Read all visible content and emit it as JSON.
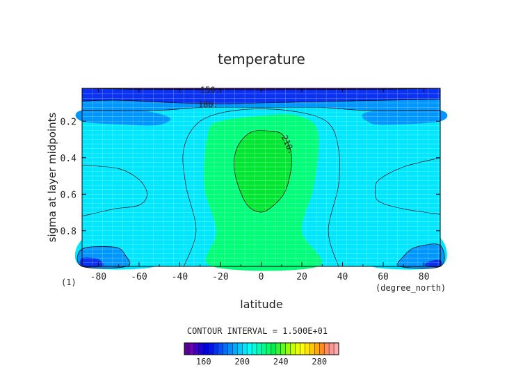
{
  "chart_data": {
    "type": "heatmap",
    "title": "temperature",
    "xlabel": "latitude",
    "ylabel": "sigma at layer midpoints",
    "x_units": "(degree_north)",
    "panel_marker": "(1)",
    "xlim": [
      -88,
      88
    ],
    "ylim": [
      0.02,
      0.995
    ],
    "y_inverted": true,
    "grid": true,
    "x_ticks": [
      -80,
      -60,
      -40,
      -20,
      0,
      20,
      40,
      60,
      80
    ],
    "y_ticks": [
      0.2,
      0.4,
      0.6,
      0.8
    ],
    "contour_interval_text": "CONTOUR INTERVAL = 1.500E+01",
    "contour_labels": [
      {
        "text": "150.",
        "lat": -25,
        "sigma": 0.03
      },
      {
        "text": "180.",
        "lat": -26,
        "sigma": 0.11
      },
      {
        "text": "210.",
        "lat": 12,
        "sigma": 0.32,
        "rotate": 65
      }
    ],
    "levels": [
      140,
      145,
      150,
      155,
      160,
      165,
      170,
      175,
      180,
      185,
      190,
      195,
      200,
      205,
      210,
      215,
      220,
      225,
      230,
      235,
      240,
      245,
      250,
      255,
      260,
      265,
      270,
      275,
      280,
      285,
      290,
      295,
      300
    ],
    "colorbar_ticks": [
      160,
      200,
      240,
      280
    ],
    "colorbar_colors": [
      "#5a0096",
      "#6a00b4",
      "#3c00c8",
      "#1e00d2",
      "#0000e6",
      "#0014f0",
      "#0032f5",
      "#0050fa",
      "#006eff",
      "#008cff",
      "#00aaff",
      "#00c8ff",
      "#00e6ff",
      "#00ffff",
      "#00ffdc",
      "#00ffb4",
      "#00ff8c",
      "#00ff64",
      "#00f050",
      "#32f532",
      "#64fa1e",
      "#96ff00",
      "#c8ff00",
      "#e6ff00",
      "#ffff00",
      "#ffe600",
      "#ffc800",
      "#ffaa00",
      "#ff8c1e",
      "#ff8c64",
      "#ff9696",
      "#ffaaaa"
    ],
    "fill_colors": {
      "t150": "#3c0096",
      "t165": "#2800dc",
      "t180": "#0a32f0",
      "t195": "#0096ff",
      "t210": "#00e6ff",
      "t225": "#00ff78",
      "t240": "#00e632"
    },
    "contours": [
      {
        "level": 165,
        "points": [
          [
            -88,
            0.02
          ],
          [
            -60,
            0.025
          ],
          [
            -20,
            0.027
          ],
          [
            0,
            0.028
          ],
          [
            20,
            0.027
          ],
          [
            60,
            0.025
          ],
          [
            88,
            0.02
          ]
        ]
      },
      {
        "level": 180,
        "points": [
          [
            -88,
            0.09
          ],
          [
            -70,
            0.085
          ],
          [
            -40,
            0.1
          ],
          [
            -20,
            0.105
          ],
          [
            0,
            0.1
          ],
          [
            20,
            0.095
          ],
          [
            40,
            0.09
          ],
          [
            60,
            0.085
          ],
          [
            88,
            0.08
          ]
        ]
      },
      {
        "level": 195,
        "points": [
          [
            -88,
            0.14
          ],
          [
            -50,
            0.14
          ],
          [
            -30,
            0.125
          ],
          [
            0,
            0.125
          ],
          [
            30,
            0.125
          ],
          [
            50,
            0.14
          ],
          [
            88,
            0.14
          ]
        ]
      }
    ],
    "regions": [
      {
        "name": "warm-core-225",
        "level": 225,
        "points": [
          [
            -20,
            0.2
          ],
          [
            0,
            0.17
          ],
          [
            18,
            0.17
          ],
          [
            28,
            0.26
          ],
          [
            26,
            0.55
          ],
          [
            20,
            0.8
          ],
          [
            28,
            0.995
          ],
          [
            -24,
            0.995
          ],
          [
            -22,
            0.8
          ],
          [
            -28,
            0.55
          ],
          [
            -26,
            0.26
          ]
        ]
      },
      {
        "name": "core-240",
        "level": 240,
        "points": [
          [
            -12,
            0.35
          ],
          [
            -5,
            0.26
          ],
          [
            5,
            0.255
          ],
          [
            11,
            0.28
          ],
          [
            15,
            0.4
          ],
          [
            12,
            0.58
          ],
          [
            4,
            0.68
          ],
          [
            -2,
            0.695
          ],
          [
            -8,
            0.64
          ],
          [
            -13,
            0.48
          ]
        ]
      },
      {
        "name": "sh-surface-210",
        "level": 210,
        "points": [
          [
            -88,
            0.85
          ],
          [
            -70,
            0.84
          ],
          [
            -58,
            0.86
          ],
          [
            -52,
            0.995
          ],
          [
            -88,
            0.995
          ]
        ]
      },
      {
        "name": "sh-surface-195",
        "level": 195,
        "points": [
          [
            -88,
            0.9
          ],
          [
            -72,
            0.89
          ],
          [
            -67,
            0.93
          ],
          [
            -66,
            0.995
          ],
          [
            -88,
            0.995
          ]
        ]
      },
      {
        "name": "sh-surface-180",
        "level": 180,
        "points": [
          [
            -88,
            0.95
          ],
          [
            -80,
            0.955
          ],
          [
            -78,
            0.995
          ],
          [
            -88,
            0.995
          ]
        ]
      },
      {
        "name": "nh-surface-210",
        "level": 210,
        "points": [
          [
            88,
            0.84
          ],
          [
            70,
            0.84
          ],
          [
            58,
            0.87
          ],
          [
            54,
            0.995
          ],
          [
            88,
            0.995
          ]
        ]
      },
      {
        "name": "nh-surface-195",
        "level": 195,
        "points": [
          [
            88,
            0.88
          ],
          [
            76,
            0.89
          ],
          [
            70,
            0.94
          ],
          [
            68,
            0.995
          ],
          [
            88,
            0.995
          ]
        ]
      },
      {
        "name": "nh-surface-180",
        "level": 180,
        "points": [
          [
            88,
            0.96
          ],
          [
            82,
            0.97
          ],
          [
            81,
            0.995
          ],
          [
            88,
            0.995
          ]
        ]
      },
      {
        "name": "sh-mid-195",
        "level": 195,
        "points": [
          [
            -88,
            0.2
          ],
          [
            -65,
            0.22
          ],
          [
            -50,
            0.22
          ],
          [
            -45,
            0.18
          ],
          [
            -60,
            0.14
          ],
          [
            -88,
            0.14
          ]
        ]
      },
      {
        "name": "nh-mid-195",
        "level": 195,
        "points": [
          [
            88,
            0.2
          ],
          [
            60,
            0.22
          ],
          [
            52,
            0.2
          ],
          [
            50,
            0.16
          ],
          [
            60,
            0.14
          ],
          [
            88,
            0.14
          ]
        ]
      }
    ],
    "extra_contours": [
      {
        "name": "outer-210",
        "points": [
          [
            -88,
            0.44
          ],
          [
            -70,
            0.46
          ],
          [
            -60,
            0.52
          ],
          [
            -56,
            0.6
          ],
          [
            -60,
            0.66
          ],
          [
            -72,
            0.68
          ],
          [
            -88,
            0.72
          ]
        ]
      },
      {
        "name": "outer-210-r",
        "points": [
          [
            88,
            0.4
          ],
          [
            70,
            0.45
          ],
          [
            58,
            0.52
          ],
          [
            56,
            0.58
          ],
          [
            58,
            0.64
          ],
          [
            70,
            0.68
          ],
          [
            88,
            0.71
          ]
        ]
      },
      {
        "name": "core-outline",
        "points": [
          [
            -38,
            0.995
          ],
          [
            -32,
            0.8
          ],
          [
            -37,
            0.55
          ],
          [
            -38,
            0.35
          ],
          [
            -30,
            0.2
          ],
          [
            -12,
            0.14
          ],
          [
            12,
            0.14
          ],
          [
            32,
            0.2
          ],
          [
            38,
            0.35
          ],
          [
            38,
            0.55
          ],
          [
            33,
            0.8
          ],
          [
            38,
            0.995
          ]
        ]
      }
    ]
  }
}
